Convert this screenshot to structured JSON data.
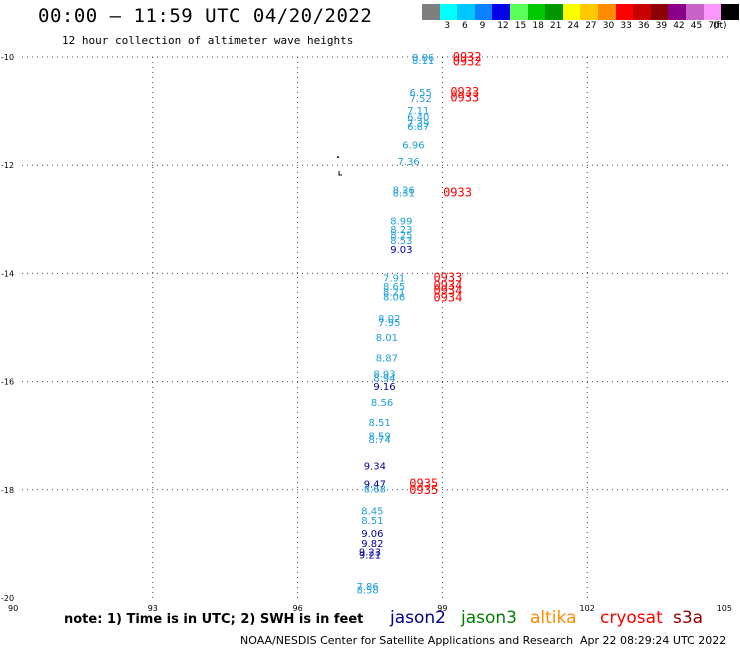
{
  "title": "00:00 – 11:59 UTC 04/20/2022",
  "subtitle": "12 hour collection of altimeter wave heights",
  "colorbar": {
    "unit": "(ft)",
    "bins": [
      {
        "label": "",
        "color": "#7f7f7f"
      },
      {
        "label": "3",
        "color": "#00ffff"
      },
      {
        "label": "6",
        "color": "#00c8ff"
      },
      {
        "label": "9",
        "color": "#0a82ff"
      },
      {
        "label": "12",
        "color": "#0000e6"
      },
      {
        "label": "15",
        "color": "#5aff5a"
      },
      {
        "label": "18",
        "color": "#00c800"
      },
      {
        "label": "21",
        "color": "#009600"
      },
      {
        "label": "24",
        "color": "#ffff00"
      },
      {
        "label": "27",
        "color": "#ffc800"
      },
      {
        "label": "30",
        "color": "#ff8c00"
      },
      {
        "label": "33",
        "color": "#ff0000"
      },
      {
        "label": "36",
        "color": "#c80000"
      },
      {
        "label": "39",
        "color": "#8b0000"
      },
      {
        "label": "42",
        "color": "#8b008b"
      },
      {
        "label": "45",
        "color": "#c864c8"
      },
      {
        "label": "70",
        "color": "#ff96ff"
      },
      {
        "label": "",
        "color": "#000000"
      }
    ]
  },
  "map": {
    "lon_range": [
      90,
      105
    ],
    "lat_range": [
      -20,
      -10
    ],
    "lon_ticks": [
      "90",
      "93",
      "96",
      "99",
      "102",
      "105"
    ],
    "lat_ticks": [
      "-10",
      "-12",
      "-14",
      "-16",
      "-18",
      "-20"
    ],
    "grid": "dotted"
  },
  "colors": {
    "jason2": "#00008b",
    "jason3": "#008000",
    "altika": "#ff8c00",
    "cryosat": "#ff0000",
    "s3a": "#8b0000",
    "swh_light": "#1ea0dc",
    "swh_dark": "#000099",
    "time": "#ff0000"
  },
  "observations": [
    {
      "lon": 98.6,
      "lat": -10.0,
      "text": "8.86",
      "tone": "light"
    },
    {
      "lon": 98.6,
      "lat": -10.06,
      "text": "8.11",
      "tone": "light"
    },
    {
      "lon": 98.55,
      "lat": -10.65,
      "text": "6.55",
      "tone": "light"
    },
    {
      "lon": 98.55,
      "lat": -10.76,
      "text": "7.52",
      "tone": "light"
    },
    {
      "lon": 98.5,
      "lat": -10.98,
      "text": "7.11",
      "tone": "light"
    },
    {
      "lon": 98.5,
      "lat": -11.1,
      "text": "6.40",
      "tone": "light"
    },
    {
      "lon": 98.5,
      "lat": -11.22,
      "text": "7.39",
      "tone": "light"
    },
    {
      "lon": 98.5,
      "lat": -11.28,
      "text": "6.87",
      "tone": "light"
    },
    {
      "lon": 98.4,
      "lat": -11.62,
      "text": "6.96",
      "tone": "light"
    },
    {
      "lon": 98.3,
      "lat": -11.92,
      "text": "7.36",
      "tone": "light"
    },
    {
      "lon": 98.2,
      "lat": -12.45,
      "text": "8.26",
      "tone": "light"
    },
    {
      "lon": 98.2,
      "lat": -12.5,
      "text": "8.31",
      "tone": "light"
    },
    {
      "lon": 98.15,
      "lat": -13.02,
      "text": "8.99",
      "tone": "light"
    },
    {
      "lon": 98.15,
      "lat": -13.18,
      "text": "8.23",
      "tone": "light"
    },
    {
      "lon": 98.15,
      "lat": -13.28,
      "text": "8.25",
      "tone": "light"
    },
    {
      "lon": 98.15,
      "lat": -13.38,
      "text": "8.53",
      "tone": "light"
    },
    {
      "lon": 98.15,
      "lat": -13.55,
      "text": "9.03",
      "tone": "dark"
    },
    {
      "lon": 98.0,
      "lat": -14.08,
      "text": "7.91",
      "tone": "light"
    },
    {
      "lon": 98.0,
      "lat": -14.23,
      "text": "8.65",
      "tone": "light"
    },
    {
      "lon": 98.0,
      "lat": -14.33,
      "text": "8.21",
      "tone": "light"
    },
    {
      "lon": 98.0,
      "lat": -14.43,
      "text": "8.06",
      "tone": "light"
    },
    {
      "lon": 97.9,
      "lat": -14.82,
      "text": "8.02",
      "tone": "light"
    },
    {
      "lon": 97.9,
      "lat": -14.9,
      "text": "7.95",
      "tone": "light"
    },
    {
      "lon": 97.85,
      "lat": -15.18,
      "text": "8.01",
      "tone": "light"
    },
    {
      "lon": 97.85,
      "lat": -15.55,
      "text": "8.87",
      "tone": "light"
    },
    {
      "lon": 97.8,
      "lat": -15.85,
      "text": "8.93",
      "tone": "light"
    },
    {
      "lon": 97.8,
      "lat": -15.92,
      "text": "8.94",
      "tone": "light"
    },
    {
      "lon": 97.8,
      "lat": -16.08,
      "text": "9.16",
      "tone": "dark"
    },
    {
      "lon": 97.75,
      "lat": -16.38,
      "text": "8.56",
      "tone": "light"
    },
    {
      "lon": 97.7,
      "lat": -16.75,
      "text": "8.51",
      "tone": "light"
    },
    {
      "lon": 97.7,
      "lat": -17.0,
      "text": "8.59",
      "tone": "light"
    },
    {
      "lon": 97.7,
      "lat": -17.06,
      "text": "8.74",
      "tone": "light"
    },
    {
      "lon": 97.6,
      "lat": -17.55,
      "text": "9.34",
      "tone": "dark"
    },
    {
      "lon": 97.6,
      "lat": -17.88,
      "text": "9.47",
      "tone": "dark"
    },
    {
      "lon": 97.6,
      "lat": -17.98,
      "text": "8.68",
      "tone": "light"
    },
    {
      "lon": 97.55,
      "lat": -18.38,
      "text": "8.45",
      "tone": "light"
    },
    {
      "lon": 97.55,
      "lat": -18.56,
      "text": "8.51",
      "tone": "light"
    },
    {
      "lon": 97.55,
      "lat": -18.8,
      "text": "9.06",
      "tone": "dark"
    },
    {
      "lon": 97.55,
      "lat": -18.98,
      "text": "9.82",
      "tone": "dark"
    },
    {
      "lon": 97.5,
      "lat": -19.14,
      "text": "9.23",
      "tone": "dark"
    },
    {
      "lon": 97.5,
      "lat": -19.2,
      "text": "9.21",
      "tone": "dark"
    },
    {
      "lon": 97.45,
      "lat": -19.78,
      "text": "7.86",
      "tone": "light"
    },
    {
      "lon": 97.45,
      "lat": -19.84,
      "text": "8.58",
      "tone": "light"
    }
  ],
  "times": [
    {
      "lon": 98.8,
      "lat": -10.0,
      "text": "0932"
    },
    {
      "lon": 98.8,
      "lat": -10.08,
      "text": "0932"
    },
    {
      "lon": 98.75,
      "lat": -10.65,
      "text": "0933"
    },
    {
      "lon": 98.75,
      "lat": -10.75,
      "text": "0933"
    },
    {
      "lon": 98.6,
      "lat": -12.5,
      "text": "0933"
    },
    {
      "lon": 98.4,
      "lat": -14.08,
      "text": "0933"
    },
    {
      "lon": 98.4,
      "lat": -14.22,
      "text": "0934"
    },
    {
      "lon": 98.4,
      "lat": -14.32,
      "text": "0934"
    },
    {
      "lon": 98.4,
      "lat": -14.45,
      "text": "0934"
    },
    {
      "lon": 97.9,
      "lat": -17.88,
      "text": "0935"
    },
    {
      "lon": 97.9,
      "lat": -18.0,
      "text": "0935"
    }
  ],
  "note": "note: 1) Time is in UTC; 2) SWH is in feet",
  "legend": {
    "jason2": "jason2",
    "jason3": "jason3",
    "altika": "altika",
    "cryosat": "cryosat",
    "s3a": "s3a"
  },
  "footer": {
    "agency": "NOAA/NESDIS Center for Satellite Applications and Research",
    "timestamp": "Apr 22 08:29:24 UTC 2022"
  }
}
